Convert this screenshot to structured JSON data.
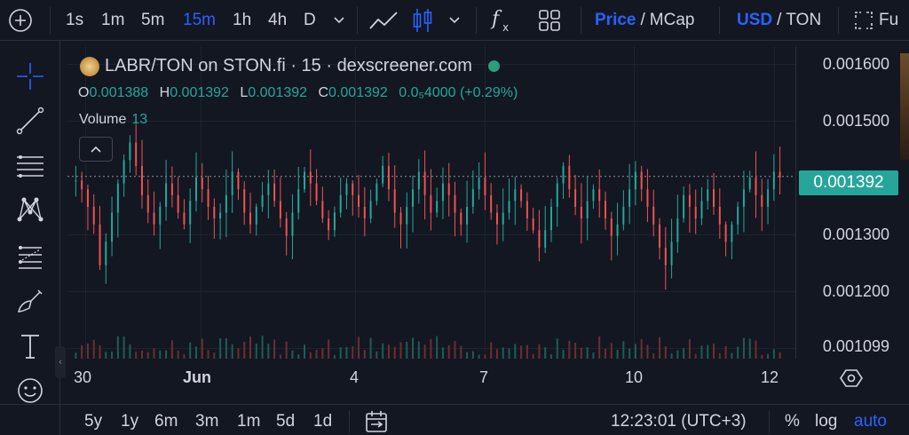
{
  "toolbar": {
    "intervals": [
      "1s",
      "1m",
      "5m",
      "15m",
      "1h",
      "4h",
      "D"
    ],
    "active_interval": "15m",
    "price_label": "Price",
    "mcap_label": "MCap",
    "price_sep": "/",
    "usd_label": "USD",
    "ton_label": "TON",
    "cur_sep": "/",
    "fullscreen_label": "Fu"
  },
  "legend": {
    "title": "LABR/TON on STON.fi · 15 · dexscreener.com",
    "o_label": "O",
    "o_value": "0.001388",
    "h_label": "H",
    "h_value": "0.001392",
    "l_label": "L",
    "l_value": "0.001392",
    "c_label": "C",
    "c_value": "0.001392",
    "change": "0.0₅4000 (+0.29%)",
    "volume_label": "Volume",
    "volume_value": "13"
  },
  "price_axis": {
    "ticks": [
      "0.001600",
      "0.001500",
      "0.001300",
      "0.001200",
      "0.001099"
    ],
    "current": "0.001392"
  },
  "time_axis": {
    "labels": [
      "30",
      "Jun",
      "4",
      "7",
      "10",
      "12"
    ]
  },
  "bottom": {
    "ranges": [
      "5y",
      "1y",
      "6m",
      "3m",
      "1m",
      "5d",
      "1d"
    ],
    "clock": "12:23:01 (UTC+3)",
    "percent": "%",
    "log": "log",
    "auto": "auto"
  },
  "colors": {
    "up": "#26a69a",
    "down": "#ef5350",
    "accent": "#2962ff",
    "background": "#131722"
  },
  "chart_data": {
    "type": "candlestick",
    "title": "LABR/TON on STON.fi · 15 · dexscreener.com",
    "y_range": [
      0.001099,
      0.0016
    ],
    "y_ticks": [
      0.0016,
      0.0015,
      0.0013,
      0.0012,
      0.001099
    ],
    "x_tick_labels": [
      "30",
      "Jun",
      "4",
      "7",
      "10",
      "12"
    ],
    "last_price": 0.001392,
    "last_ohlc": {
      "open": 0.001388,
      "high": 0.001392,
      "low": 0.001392,
      "close": 0.001392
    },
    "last_volume": 13,
    "close_series": [
      0.001385,
      0.00137,
      0.00134,
      0.00131,
      0.00124,
      0.00128,
      0.00133,
      0.00138,
      0.00142,
      0.00145,
      0.00141,
      0.00136,
      0.00133,
      0.00131,
      0.00134,
      0.00138,
      0.00136,
      0.00133,
      0.00131,
      0.00135,
      0.00139,
      0.00137,
      0.00134,
      0.00132,
      0.00133,
      0.00136,
      0.0014,
      0.00137,
      0.00133,
      0.00131,
      0.00134,
      0.00136,
      0.00138,
      0.00135,
      0.00132,
      0.00129,
      0.00133,
      0.00137,
      0.0014,
      0.00138,
      0.00135,
      0.00132,
      0.0013,
      0.00133,
      0.00136,
      0.00138,
      0.00136,
      0.00134,
      0.00132,
      0.00135,
      0.00138,
      0.00141,
      0.00137,
      0.00133,
      0.00131,
      0.00134,
      0.00137,
      0.0014,
      0.00136,
      0.00133,
      0.00135,
      0.00138,
      0.00136,
      0.00133,
      0.00131,
      0.00134,
      0.00137,
      0.00139,
      0.00136,
      0.00133,
      0.00131,
      0.00133,
      0.00135,
      0.00137,
      0.00135,
      0.00132,
      0.0013,
      0.00127,
      0.0013,
      0.00134,
      0.00138,
      0.00141,
      0.00137,
      0.00134,
      0.00132,
      0.00135,
      0.00137,
      0.00135,
      0.00132,
      0.00129,
      0.00131,
      0.00134,
      0.00137,
      0.0014,
      0.00137,
      0.00134,
      0.00131,
      0.00127,
      0.00124,
      0.00128,
      0.00132,
      0.00136,
      0.00134,
      0.00132,
      0.00135,
      0.00137,
      0.00134,
      0.00131,
      0.00128,
      0.00131,
      0.00134,
      0.00137,
      0.00139,
      0.00136,
      0.00134,
      0.00137,
      0.0014,
      0.00139
    ]
  }
}
